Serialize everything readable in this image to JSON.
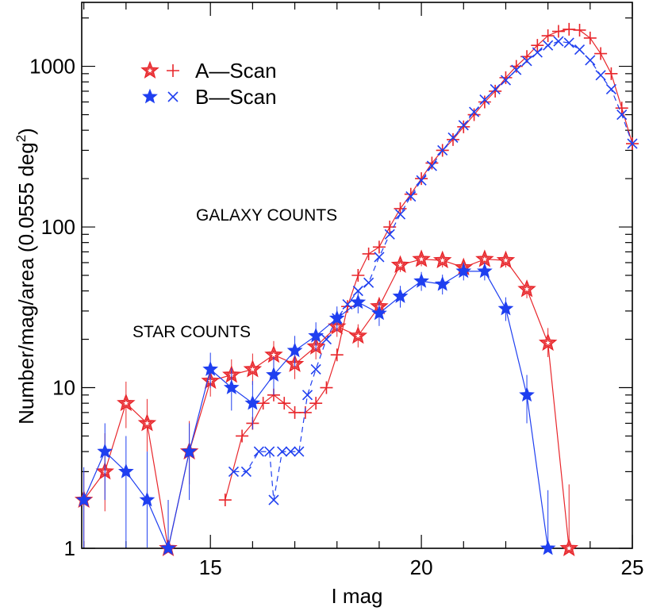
{
  "chart_data": {
    "type": "line",
    "xlabel": "I mag",
    "ylabel": "Number/mag/area (0.0555 deg",
    "ylabel_sup": "2",
    "ylabel_end": ")",
    "xlim": [
      11.95,
      25.0
    ],
    "ylim": [
      1,
      2500
    ],
    "yscale": "log",
    "x_ticks": [
      15,
      20,
      25
    ],
    "y_ticks": [
      1,
      10,
      100,
      1000
    ],
    "annotations": {
      "galaxy": "GALAXY COUNTS",
      "star": "STAR COUNTS"
    },
    "legend": [
      {
        "label": "A—Scan",
        "color": "#e8262b"
      },
      {
        "label": "B—Scan",
        "color": "#1f3ff0"
      }
    ],
    "series": [
      {
        "name": "A-Scan galaxies",
        "kind": "galaxy",
        "marker": "plus",
        "color": "#e8262b",
        "dash": false,
        "x": [
          15.35,
          15.75,
          16.0,
          16.25,
          16.5,
          16.75,
          17.0,
          17.25,
          17.5,
          17.75,
          18.0,
          18.25,
          18.5,
          18.75,
          19.0,
          19.25,
          19.5,
          19.75,
          20.0,
          20.25,
          20.5,
          20.75,
          21.0,
          21.25,
          21.5,
          21.75,
          22.0,
          22.25,
          22.5,
          22.75,
          23.0,
          23.25,
          23.5,
          23.75,
          24.0,
          24.25,
          24.5,
          24.75,
          25.0
        ],
        "y": [
          2,
          5,
          6,
          8,
          9,
          8,
          7,
          7,
          8,
          10,
          16,
          32,
          50,
          68,
          75,
          100,
          130,
          160,
          200,
          250,
          300,
          350,
          420,
          500,
          600,
          700,
          850,
          1000,
          1150,
          1350,
          1550,
          1650,
          1700,
          1680,
          1500,
          1200,
          900,
          550,
          330
        ]
      },
      {
        "name": "B-Scan galaxies",
        "kind": "galaxy",
        "marker": "cross",
        "color": "#1f3ff0",
        "dash": true,
        "x": [
          15.55,
          15.85,
          16.15,
          16.4,
          16.5,
          16.7,
          16.9,
          17.1,
          17.3,
          17.5,
          17.75,
          18.0,
          18.25,
          18.5,
          18.75,
          19.0,
          19.25,
          19.5,
          19.75,
          20.0,
          20.25,
          20.5,
          20.75,
          21.0,
          21.25,
          21.5,
          21.75,
          22.0,
          22.25,
          22.5,
          22.75,
          23.0,
          23.25,
          23.5,
          23.75,
          24.0,
          24.25,
          24.5,
          24.75,
          25.0
        ],
        "y": [
          3,
          3,
          4,
          4,
          2,
          4,
          4,
          4,
          9,
          13,
          20,
          27,
          33,
          40,
          45,
          65,
          90,
          120,
          155,
          195,
          240,
          300,
          360,
          430,
          520,
          620,
          720,
          820,
          950,
          1080,
          1220,
          1350,
          1430,
          1400,
          1270,
          1090,
          880,
          720,
          500,
          330
        ]
      },
      {
        "name": "A-Scan stars",
        "kind": "star",
        "marker": "open-star",
        "color": "#e8262b",
        "dash": false,
        "x": [
          12.0,
          12.5,
          13.0,
          13.5,
          14.0,
          14.5,
          15.0,
          15.5,
          16.0,
          16.5,
          17.0,
          17.5,
          18.0,
          18.5,
          19.0,
          19.5,
          20.0,
          20.5,
          21.0,
          21.5,
          22.0,
          22.5,
          23.0,
          23.5
        ],
        "y": [
          2,
          3,
          8,
          6,
          1,
          4,
          11,
          12,
          13,
          16,
          14,
          18,
          24,
          21,
          32,
          58,
          63,
          62,
          56,
          63,
          62,
          41,
          19,
          1
        ],
        "err_lo": [
          1.0,
          1.3,
          2.4,
          2.0,
          1.0,
          1.5,
          2.2,
          2.3,
          2.6,
          2.8,
          2.7,
          3.0,
          3.3,
          3.2,
          4.0,
          5.5,
          6.0,
          6.0,
          5.5,
          6.0,
          6.0,
          5.0,
          3.5,
          1.0
        ],
        "err_hi": [
          1.0,
          2.2,
          2.9,
          2.5,
          1.0,
          2.2,
          3.0,
          3.0,
          3.3,
          3.5,
          3.3,
          3.6,
          4.0,
          3.8,
          4.5,
          6.0,
          6.5,
          6.5,
          6.0,
          6.5,
          6.5,
          5.5,
          4.5,
          1.5
        ]
      },
      {
        "name": "B-Scan stars",
        "kind": "star",
        "marker": "filled-star",
        "color": "#1f3ff0",
        "dash": false,
        "x": [
          12.0,
          12.5,
          13.0,
          13.5,
          14.0,
          14.5,
          15.0,
          15.5,
          16.0,
          16.5,
          17.0,
          17.5,
          18.0,
          18.5,
          19.0,
          19.5,
          20.0,
          20.5,
          21.0,
          21.5,
          22.0,
          22.5,
          23.0
        ],
        "y": [
          2,
          4,
          3,
          2,
          1,
          4,
          13,
          10,
          8,
          12,
          17,
          21,
          27,
          34,
          29,
          37,
          46,
          44,
          53,
          53,
          31,
          9,
          1
        ],
        "err_lo": [
          1.0,
          2.0,
          2.0,
          1.5,
          1.0,
          2.0,
          3.0,
          2.8,
          2.5,
          3.0,
          3.5,
          4.0,
          4.5,
          5.0,
          4.8,
          5.5,
          6.0,
          6.0,
          6.5,
          6.5,
          5.0,
          3.0,
          1.0
        ],
        "err_hi": [
          1.2,
          2.0,
          2.0,
          2.0,
          1.0,
          2.0,
          3.5,
          3.2,
          3.0,
          3.5,
          4.0,
          4.5,
          5.0,
          5.5,
          5.3,
          6.0,
          6.5,
          6.5,
          7.0,
          7.0,
          5.5,
          3.0,
          1.3
        ]
      }
    ]
  }
}
